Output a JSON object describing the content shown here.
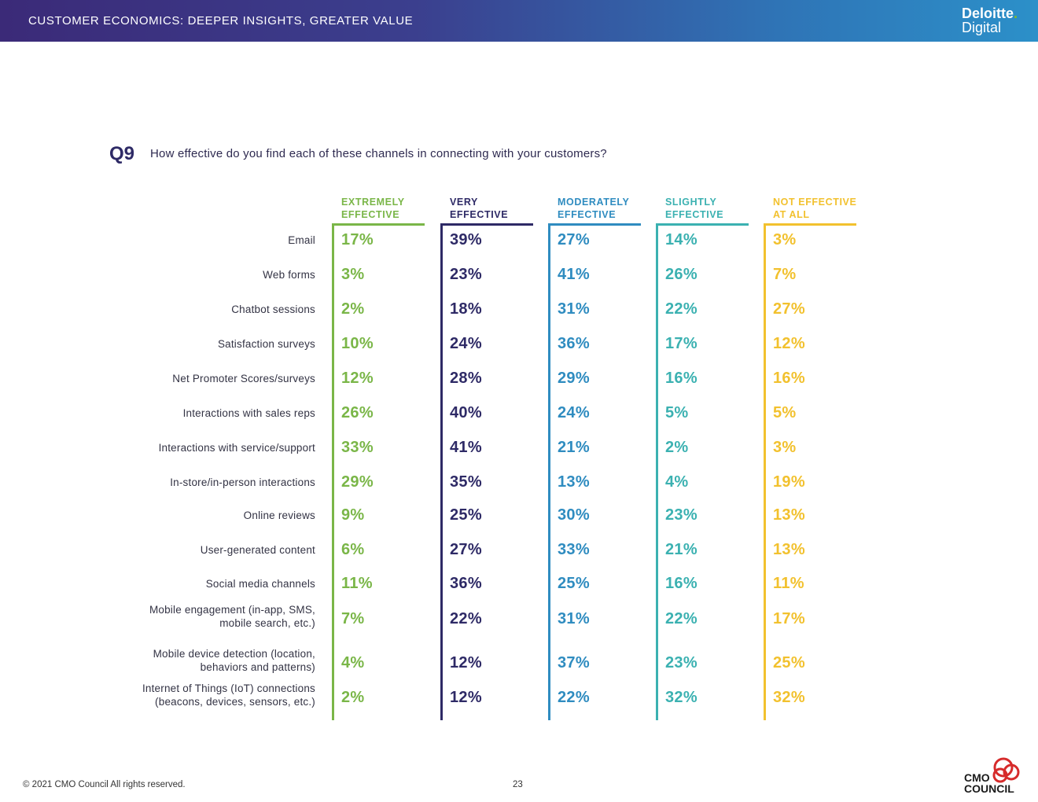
{
  "header": {
    "title": "CUSTOMER ECONOMICS: DEEPER INSIGHTS, GREATER VALUE",
    "logo_line1": "Deloitte",
    "logo_dot": ".",
    "logo_line2": "Digital"
  },
  "question": {
    "label": "Q9",
    "text": "How effective do you find each of these channels in connecting with your customers?"
  },
  "columns": [
    {
      "line1": "EXTREMELY",
      "line2": "EFFECTIVE",
      "color": "#7ab648"
    },
    {
      "line1": "VERY",
      "line2": "EFFECTIVE",
      "color": "#2e2a66"
    },
    {
      "line1": "MODERATELY",
      "line2": "EFFECTIVE",
      "color": "#2f8cc0"
    },
    {
      "line1": "SLIGHTLY",
      "line2": "EFFECTIVE",
      "color": "#3bb1b1"
    },
    {
      "line1": "NOT EFFECTIVE",
      "line2": "AT ALL",
      "color": "#f2c12e"
    }
  ],
  "rows": [
    {
      "label1": "Email",
      "label2": "",
      "values": [
        "17%",
        "39%",
        "27%",
        "14%",
        "3%"
      ]
    },
    {
      "label1": "Web forms",
      "label2": "",
      "values": [
        "3%",
        "23%",
        "41%",
        "26%",
        "7%"
      ]
    },
    {
      "label1": "Chatbot sessions",
      "label2": "",
      "values": [
        "2%",
        "18%",
        "31%",
        "22%",
        "27%"
      ]
    },
    {
      "label1": "Satisfaction surveys",
      "label2": "",
      "values": [
        "10%",
        "24%",
        "36%",
        "17%",
        "12%"
      ]
    },
    {
      "label1": "Net Promoter Scores/surveys",
      "label2": "",
      "values": [
        "12%",
        "28%",
        "29%",
        "16%",
        "16%"
      ]
    },
    {
      "label1": "Interactions with sales reps",
      "label2": "",
      "values": [
        "26%",
        "40%",
        "24%",
        "5%",
        "5%"
      ]
    },
    {
      "label1": "Interactions with service/support",
      "label2": "",
      "values": [
        "33%",
        "41%",
        "21%",
        "2%",
        "3%"
      ]
    },
    {
      "label1": "In-store/in-person interactions",
      "label2": "",
      "values": [
        "29%",
        "35%",
        "13%",
        "4%",
        "19%"
      ]
    },
    {
      "label1": "Online reviews",
      "label2": "",
      "values": [
        "9%",
        "25%",
        "30%",
        "23%",
        "13%"
      ]
    },
    {
      "label1": "User-generated content",
      "label2": "",
      "values": [
        "6%",
        "27%",
        "33%",
        "21%",
        "13%"
      ]
    },
    {
      "label1": "Social media channels",
      "label2": "",
      "values": [
        "11%",
        "36%",
        "25%",
        "16%",
        "11%"
      ]
    },
    {
      "label1": "Mobile engagement (in-app, SMS,",
      "label2": "mobile search, etc.)",
      "values": [
        "7%",
        "22%",
        "31%",
        "22%",
        "17%"
      ]
    },
    {
      "label1": "Mobile device detection (location,",
      "label2": "behaviors and patterns)",
      "values": [
        "4%",
        "12%",
        "37%",
        "23%",
        "25%"
      ]
    },
    {
      "label1": "Internet of Things (IoT) connections",
      "label2": "(beacons, devices, sensors, etc.)",
      "values": [
        "2%",
        "12%",
        "22%",
        "32%",
        "32%"
      ]
    }
  ],
  "footer": {
    "copyright": "© 2021 CMO Council  All rights reserved.",
    "page": "23",
    "cmo_line1": "CMO",
    "cmo_line2": "COUNCIL"
  }
}
